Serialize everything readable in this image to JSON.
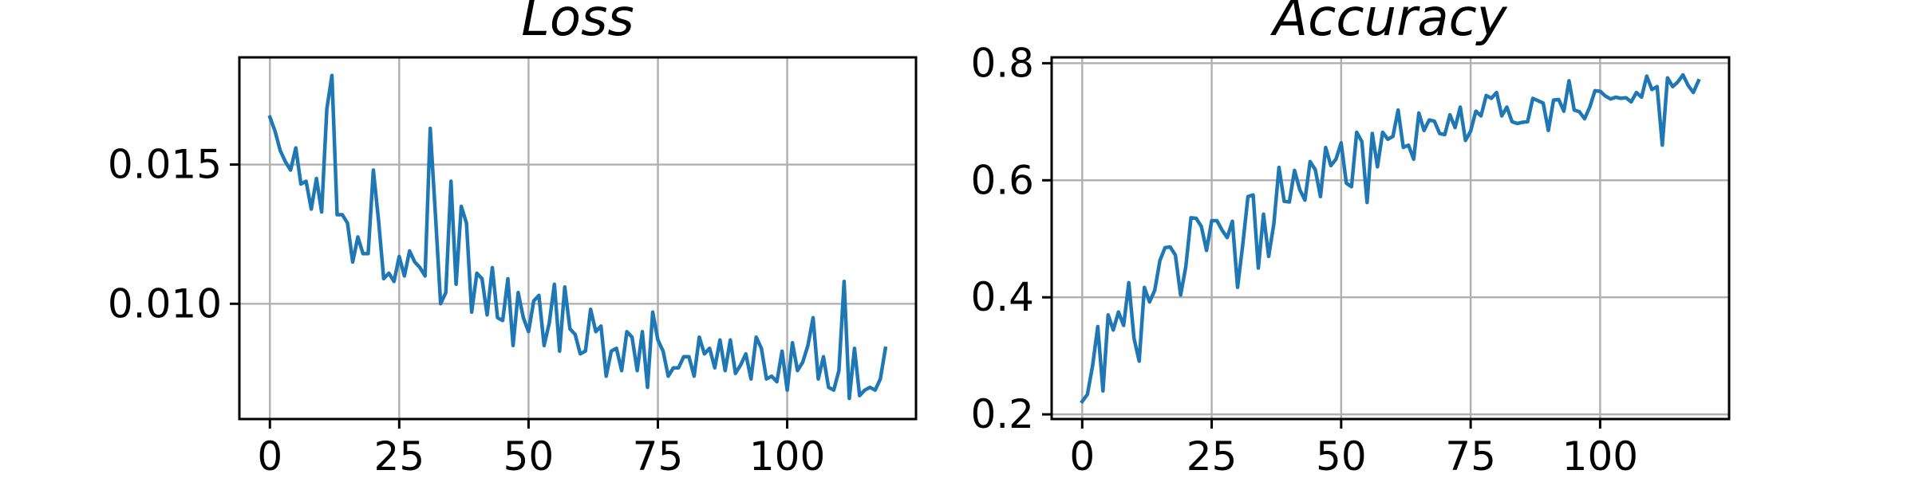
{
  "colors": {
    "series": "#1f77b4",
    "grid": "#b0b0b0",
    "frame": "#000000",
    "background": "#ffffff"
  },
  "chart_data": [
    {
      "type": "line",
      "title": "Loss",
      "xlabel": "",
      "ylabel": "",
      "grid": true,
      "xlim": [
        -5.9,
        124.9
      ],
      "ylim": [
        0.00586,
        0.01885
      ],
      "xticks": [
        0,
        25,
        50,
        75,
        100
      ],
      "xtick_labels": [
        "0",
        "25",
        "50",
        "75",
        "100"
      ],
      "yticks": [
        0.01,
        0.015
      ],
      "ytick_labels": [
        "0.010",
        "0.015"
      ],
      "series": [
        {
          "name": "",
          "x": [
            0,
            1,
            2,
            3,
            4,
            5,
            6,
            7,
            8,
            9,
            10,
            11,
            12,
            13,
            14,
            15,
            16,
            17,
            18,
            19,
            20,
            21,
            22,
            23,
            24,
            25,
            26,
            27,
            28,
            29,
            30,
            31,
            32,
            33,
            34,
            35,
            36,
            37,
            38,
            39,
            40,
            41,
            42,
            43,
            44,
            45,
            46,
            47,
            48,
            49,
            50,
            51,
            52,
            53,
            54,
            55,
            56,
            57,
            58,
            59,
            60,
            61,
            62,
            63,
            64,
            65,
            66,
            67,
            68,
            69,
            70,
            71,
            72,
            73,
            74,
            75,
            76,
            77,
            78,
            79,
            80,
            81,
            82,
            83,
            84,
            85,
            86,
            87,
            88,
            89,
            90,
            91,
            92,
            93,
            94,
            95,
            96,
            97,
            98,
            99,
            100,
            101,
            102,
            103,
            104,
            105,
            106,
            107,
            108,
            109,
            110,
            111,
            112,
            113,
            114,
            115,
            116,
            117,
            118,
            119
          ],
          "values": [
            0.0167,
            0.0162,
            0.0155,
            0.0151,
            0.0148,
            0.0156,
            0.0143,
            0.0144,
            0.0134,
            0.0145,
            0.0133,
            0.017,
            0.0182,
            0.0132,
            0.0132,
            0.0129,
            0.0115,
            0.0124,
            0.0118,
            0.0118,
            0.0148,
            0.013,
            0.0109,
            0.0111,
            0.0108,
            0.0117,
            0.011,
            0.0119,
            0.0115,
            0.0113,
            0.011,
            0.0163,
            0.0132,
            0.01,
            0.0104,
            0.0144,
            0.0107,
            0.0135,
            0.0129,
            0.0097,
            0.0111,
            0.0109,
            0.0096,
            0.0113,
            0.0095,
            0.0094,
            0.0109,
            0.0085,
            0.0104,
            0.0095,
            0.009,
            0.0101,
            0.0103,
            0.0085,
            0.0093,
            0.0107,
            0.0083,
            0.0106,
            0.0091,
            0.0089,
            0.0082,
            0.0083,
            0.0098,
            0.009,
            0.0092,
            0.0074,
            0.0083,
            0.0084,
            0.0076,
            0.009,
            0.0088,
            0.0076,
            0.009,
            0.007,
            0.0097,
            0.0087,
            0.0083,
            0.0074,
            0.0077,
            0.0077,
            0.0081,
            0.0081,
            0.0074,
            0.0088,
            0.0082,
            0.0084,
            0.0077,
            0.0087,
            0.0076,
            0.0087,
            0.0075,
            0.0078,
            0.0082,
            0.0073,
            0.0088,
            0.0084,
            0.0073,
            0.0074,
            0.0072,
            0.0083,
            0.0069,
            0.0086,
            0.0076,
            0.0079,
            0.0085,
            0.0095,
            0.0073,
            0.0081,
            0.007,
            0.0069,
            0.0076,
            0.0108,
            0.0066,
            0.0084,
            0.0067,
            0.0069,
            0.007,
            0.0069,
            0.0073,
            0.0084
          ],
          "color": "#1f77b4"
        }
      ]
    },
    {
      "type": "line",
      "title": "Accuracy",
      "xlabel": "",
      "ylabel": "",
      "grid": true,
      "xlim": [
        -5.9,
        124.9
      ],
      "ylim": [
        0.192,
        0.81
      ],
      "xticks": [
        0,
        25,
        50,
        75,
        100
      ],
      "xtick_labels": [
        "0",
        "25",
        "50",
        "75",
        "100"
      ],
      "yticks": [
        0.2,
        0.4,
        0.6,
        0.8
      ],
      "ytick_labels": [
        "0.2",
        "0.4",
        "0.6",
        "0.8"
      ],
      "series": [
        {
          "name": "",
          "x": [
            0,
            1,
            2,
            3,
            4,
            5,
            6,
            7,
            8,
            9,
            10,
            11,
            12,
            13,
            14,
            15,
            16,
            17,
            18,
            19,
            20,
            21,
            22,
            23,
            24,
            25,
            26,
            27,
            28,
            29,
            30,
            31,
            32,
            33,
            34,
            35,
            36,
            37,
            38,
            39,
            40,
            41,
            42,
            43,
            44,
            45,
            46,
            47,
            48,
            49,
            50,
            51,
            52,
            53,
            54,
            55,
            56,
            57,
            58,
            59,
            60,
            61,
            62,
            63,
            64,
            65,
            66,
            67,
            68,
            69,
            70,
            71,
            72,
            73,
            74,
            75,
            76,
            77,
            78,
            79,
            80,
            81,
            82,
            83,
            84,
            85,
            86,
            87,
            88,
            89,
            90,
            91,
            92,
            93,
            94,
            95,
            96,
            97,
            98,
            99,
            100,
            101,
            102,
            103,
            104,
            105,
            106,
            107,
            108,
            109,
            110,
            111,
            112,
            113,
            114,
            115,
            116,
            117,
            118,
            119
          ],
          "values": [
            0.222,
            0.234,
            0.283,
            0.35,
            0.24,
            0.37,
            0.344,
            0.375,
            0.352,
            0.425,
            0.33,
            0.291,
            0.417,
            0.392,
            0.412,
            0.463,
            0.485,
            0.486,
            0.472,
            0.404,
            0.452,
            0.536,
            0.535,
            0.521,
            0.48,
            0.531,
            0.531,
            0.515,
            0.502,
            0.53,
            0.417,
            0.49,
            0.572,
            0.575,
            0.45,
            0.542,
            0.47,
            0.526,
            0.622,
            0.564,
            0.563,
            0.617,
            0.584,
            0.566,
            0.632,
            0.618,
            0.572,
            0.656,
            0.625,
            0.636,
            0.664,
            0.595,
            0.589,
            0.682,
            0.666,
            0.562,
            0.68,
            0.623,
            0.682,
            0.67,
            0.675,
            0.72,
            0.656,
            0.66,
            0.636,
            0.715,
            0.685,
            0.703,
            0.701,
            0.68,
            0.678,
            0.712,
            0.69,
            0.725,
            0.668,
            0.684,
            0.718,
            0.71,
            0.745,
            0.74,
            0.75,
            0.71,
            0.725,
            0.7,
            0.697,
            0.699,
            0.7,
            0.74,
            0.736,
            0.732,
            0.685,
            0.737,
            0.738,
            0.718,
            0.77,
            0.72,
            0.717,
            0.705,
            0.725,
            0.753,
            0.752,
            0.744,
            0.739,
            0.742,
            0.74,
            0.741,
            0.734,
            0.75,
            0.742,
            0.778,
            0.755,
            0.76,
            0.66,
            0.775,
            0.76,
            0.768,
            0.78,
            0.762,
            0.75,
            0.77
          ]
        }
      ]
    }
  ]
}
